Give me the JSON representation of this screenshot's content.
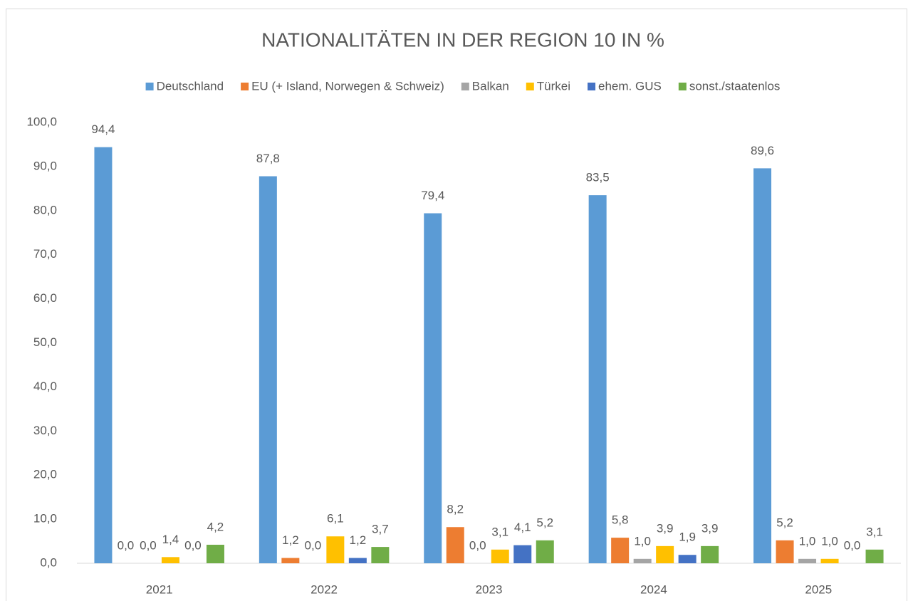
{
  "chart_data": {
    "type": "bar",
    "title": "NATIONALITÄTEN IN DER REGION 10 IN %",
    "categories": [
      "2021",
      "2022",
      "2023",
      "2024",
      "2025"
    ],
    "series": [
      {
        "name": "Deutschland",
        "color": "#5b9bd5",
        "values": [
          94.4,
          87.8,
          79.4,
          83.5,
          89.6
        ],
        "value_labels": [
          "94,4",
          "87,8",
          "79,4",
          "83,5",
          "89,6"
        ]
      },
      {
        "name": "EU (+ Island, Norwegen & Schweiz)",
        "color": "#ed7d31",
        "values": [
          0.0,
          1.2,
          8.2,
          5.8,
          5.2
        ],
        "value_labels": [
          "0,0",
          "1,2",
          "8,2",
          "5,8",
          "5,2"
        ]
      },
      {
        "name": "Balkan",
        "color": "#a5a5a5",
        "values": [
          0.0,
          0.0,
          0.0,
          1.0,
          1.0
        ],
        "value_labels": [
          "0,0",
          "0,0",
          "0,0",
          "1,0",
          "1,0"
        ]
      },
      {
        "name": "Türkei",
        "color": "#ffc000",
        "values": [
          1.4,
          6.1,
          3.1,
          3.9,
          1.0
        ],
        "value_labels": [
          "1,4",
          "6,1",
          "3,1",
          "3,9",
          "1,0"
        ]
      },
      {
        "name": "ehem. GUS",
        "color": "#4472c4",
        "values": [
          0.0,
          1.2,
          4.1,
          1.9,
          0.0
        ],
        "value_labels": [
          "0,0",
          "1,2",
          "4,1",
          "1,9",
          "0,0"
        ]
      },
      {
        "name": "sonst./staatenlos",
        "color": "#70ad47",
        "values": [
          4.2,
          3.7,
          5.2,
          3.9,
          3.1
        ],
        "value_labels": [
          "4,2",
          "3,7",
          "5,2",
          "3,9",
          "3,1"
        ]
      }
    ],
    "ylim": [
      0,
      100
    ],
    "yticks": [
      {
        "value": 0,
        "label": "0,0"
      },
      {
        "value": 10,
        "label": "10,0"
      },
      {
        "value": 20,
        "label": "20,0"
      },
      {
        "value": 30,
        "label": "30,0"
      },
      {
        "value": 40,
        "label": "40,0"
      },
      {
        "value": 50,
        "label": "50,0"
      },
      {
        "value": 60,
        "label": "60,0"
      },
      {
        "value": 70,
        "label": "70,0"
      },
      {
        "value": 80,
        "label": "80,0"
      },
      {
        "value": 90,
        "label": "90,0"
      },
      {
        "value": 100,
        "label": "100,0"
      }
    ],
    "grid": false,
    "legend": "top"
  }
}
